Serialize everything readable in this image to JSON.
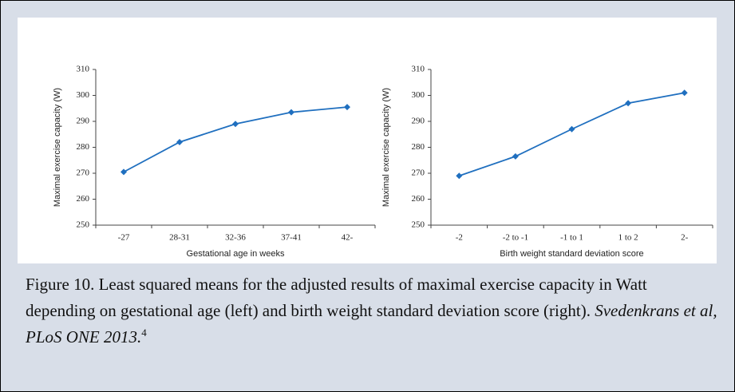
{
  "chart_data": [
    {
      "type": "line",
      "x_label": "Gestational age in weeks",
      "y_label": "Maximal exercise capacity (W)",
      "categories": [
        "-27",
        "28-31",
        "32-36",
        "37-41",
        "42-"
      ],
      "values": [
        270.5,
        282,
        289,
        293.5,
        295.5
      ],
      "color": "#1f6fbf",
      "ylim": [
        250,
        310
      ],
      "yticks": [
        250,
        260,
        270,
        280,
        290,
        300,
        310
      ]
    },
    {
      "type": "line",
      "x_label": "Birth weight standard deviation score",
      "y_label": "Maximal exercise capacity (W)",
      "categories": [
        "-2",
        "-2 to -1",
        "-1 to 1",
        "1 to 2",
        "2-"
      ],
      "values": [
        269,
        276.5,
        287,
        297,
        301
      ],
      "color": "#1f6fbf",
      "ylim": [
        250,
        310
      ],
      "yticks": [
        250,
        260,
        270,
        280,
        290,
        300,
        310
      ]
    }
  ],
  "caption": {
    "text": "Figure 10. Least squared means for the adjusted results of maximal exercise capacity in Watt depending on gestational age (left) and birth weight standard deviation score (right). ",
    "citation": "Svedenkrans et al, PLoS ONE 2013.",
    "reference": "4"
  }
}
